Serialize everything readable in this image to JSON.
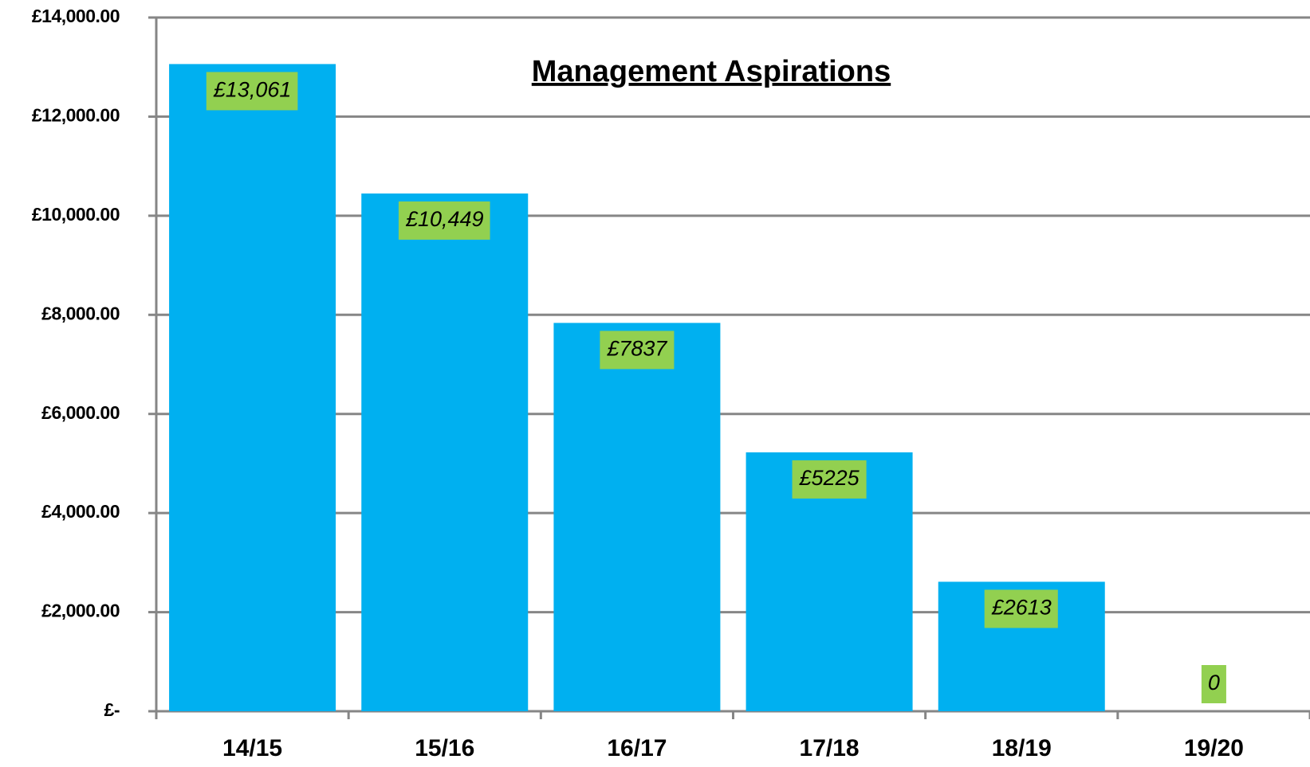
{
  "chart_data": {
    "type": "bar",
    "title": "Management Aspirations",
    "categories": [
      "14/15",
      "15/16",
      "16/17",
      "17/18",
      "18/19",
      "19/20"
    ],
    "values": [
      13061,
      10449,
      7837,
      5225,
      2613,
      0
    ],
    "value_labels": [
      "£13,061",
      "£10,449",
      "£7837",
      "£5225",
      "£2613",
      "0"
    ],
    "color": "#00b0f0",
    "label_color": "#92d050",
    "ylim": [
      0,
      14000
    ],
    "yticks": [
      {
        "value": 0,
        "label": "£-"
      },
      {
        "value": 2000,
        "label": "£2,000.00"
      },
      {
        "value": 4000,
        "label": "£4,000.00"
      },
      {
        "value": 6000,
        "label": "£6,000.00"
      },
      {
        "value": 8000,
        "label": "£8,000.00"
      },
      {
        "value": 10000,
        "label": "£10,000.00"
      },
      {
        "value": 12000,
        "label": "£12,000.00"
      },
      {
        "value": 14000,
        "label": "£14,000.00"
      }
    ],
    "grid": true
  }
}
